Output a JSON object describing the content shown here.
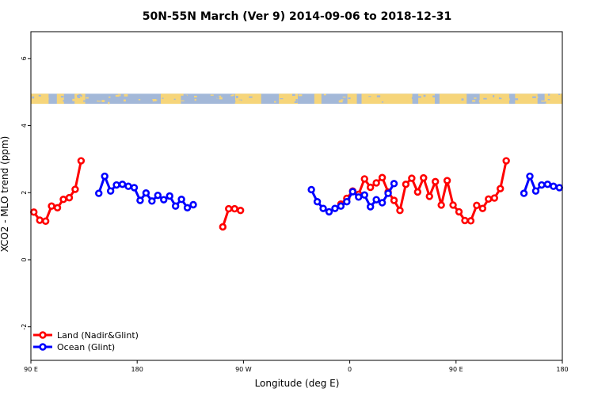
{
  "chart_data": {
    "type": "line",
    "title": "50N-55N March (Ver 9)   2014-09-06 to 2018-12-31",
    "xlabel": "Longitude (deg E)",
    "ylabel": "XCO2 - MLO trend (ppm)",
    "xlim": [
      90,
      540
    ],
    "ylim": [
      -3.0,
      6.8
    ],
    "x_ticks": [
      {
        "value": 90,
        "label": "90 E"
      },
      {
        "value": 180,
        "label": "180"
      },
      {
        "value": 270,
        "label": "90 W"
      },
      {
        "value": 360,
        "label": "0"
      },
      {
        "value": 450,
        "label": "90 E"
      },
      {
        "value": 540,
        "label": "180"
      }
    ],
    "y_ticks": [
      {
        "value": -2,
        "label": "-2"
      },
      {
        "value": 0,
        "label": "0"
      },
      {
        "value": 2,
        "label": "2"
      },
      {
        "value": 4,
        "label": "4"
      },
      {
        "value": 6,
        "label": "6"
      }
    ],
    "land_ocean_band": {
      "y_bottom": 4.65,
      "y_top": 4.95,
      "land_color": "#f6d57a",
      "ocean_color": "#a3b8d8"
    },
    "legend_position": "bottom-left",
    "series": [
      {
        "name": "Land (Nadir&Glint)",
        "color": "#ff0000",
        "segments": [
          [
            [
              92.5,
              1.42
            ],
            [
              97.5,
              1.18
            ],
            [
              102.5,
              1.15
            ],
            [
              107.5,
              1.6
            ],
            [
              112.5,
              1.55
            ],
            [
              117.5,
              1.8
            ],
            [
              122.5,
              1.85
            ],
            [
              127.5,
              2.1
            ],
            [
              132.5,
              2.95
            ]
          ],
          [
            [
              252.5,
              0.98
            ],
            [
              257.5,
              1.52
            ],
            [
              262.5,
              1.52
            ],
            [
              267.5,
              1.47
            ]
          ],
          [
            [
              352.5,
              1.66
            ],
            [
              357.5,
              1.83
            ],
            [
              362.5,
              2.05
            ],
            [
              367.5,
              1.95
            ],
            [
              372.5,
              2.41
            ],
            [
              377.5,
              2.16
            ],
            [
              382.5,
              2.29
            ],
            [
              387.5,
              2.45
            ],
            [
              392.5,
              2.02
            ],
            [
              397.5,
              1.77
            ],
            [
              402.5,
              1.47
            ],
            [
              407.5,
              2.25
            ],
            [
              412.5,
              2.43
            ],
            [
              417.5,
              2.02
            ],
            [
              422.5,
              2.44
            ],
            [
              427.5,
              1.89
            ],
            [
              432.5,
              2.33
            ],
            [
              437.5,
              1.63
            ],
            [
              442.5,
              2.36
            ],
            [
              447.5,
              1.63
            ],
            [
              452.5,
              1.43
            ],
            [
              457.5,
              1.17
            ],
            [
              462.5,
              1.16
            ],
            [
              467.5,
              1.62
            ],
            [
              472.5,
              1.53
            ],
            [
              477.5,
              1.81
            ],
            [
              482.5,
              1.84
            ],
            [
              487.5,
              2.12
            ],
            [
              492.5,
              2.95
            ]
          ]
        ]
      },
      {
        "name": "Ocean (Glint)",
        "color": "#0000ff",
        "segments": [
          [
            [
              147.5,
              1.98
            ],
            [
              152.5,
              2.49
            ],
            [
              157.5,
              2.05
            ],
            [
              162.5,
              2.23
            ],
            [
              167.5,
              2.25
            ],
            [
              172.5,
              2.19
            ],
            [
              177.5,
              2.15
            ],
            [
              182.5,
              1.77
            ],
            [
              187.5,
              1.99
            ],
            [
              192.5,
              1.75
            ],
            [
              197.5,
              1.92
            ],
            [
              202.5,
              1.79
            ],
            [
              207.5,
              1.9
            ],
            [
              212.5,
              1.6
            ],
            [
              217.5,
              1.8
            ],
            [
              222.5,
              1.55
            ],
            [
              227.5,
              1.64
            ]
          ],
          [
            [
              327.5,
              2.09
            ],
            [
              332.5,
              1.73
            ],
            [
              337.5,
              1.53
            ],
            [
              342.5,
              1.43
            ],
            [
              347.5,
              1.53
            ],
            [
              352.5,
              1.6
            ],
            [
              357.5,
              1.73
            ],
            [
              362.5,
              2.03
            ],
            [
              367.5,
              1.87
            ],
            [
              372.5,
              1.93
            ],
            [
              377.5,
              1.58
            ],
            [
              382.5,
              1.79
            ],
            [
              387.5,
              1.7
            ],
            [
              392.5,
              1.98
            ],
            [
              397.5,
              2.27
            ]
          ],
          [
            [
              507.5,
              1.98
            ],
            [
              512.5,
              2.49
            ],
            [
              517.5,
              2.05
            ],
            [
              522.5,
              2.23
            ],
            [
              527.5,
              2.25
            ],
            [
              532.5,
              2.19
            ],
            [
              537.5,
              2.15
            ]
          ]
        ]
      }
    ]
  }
}
